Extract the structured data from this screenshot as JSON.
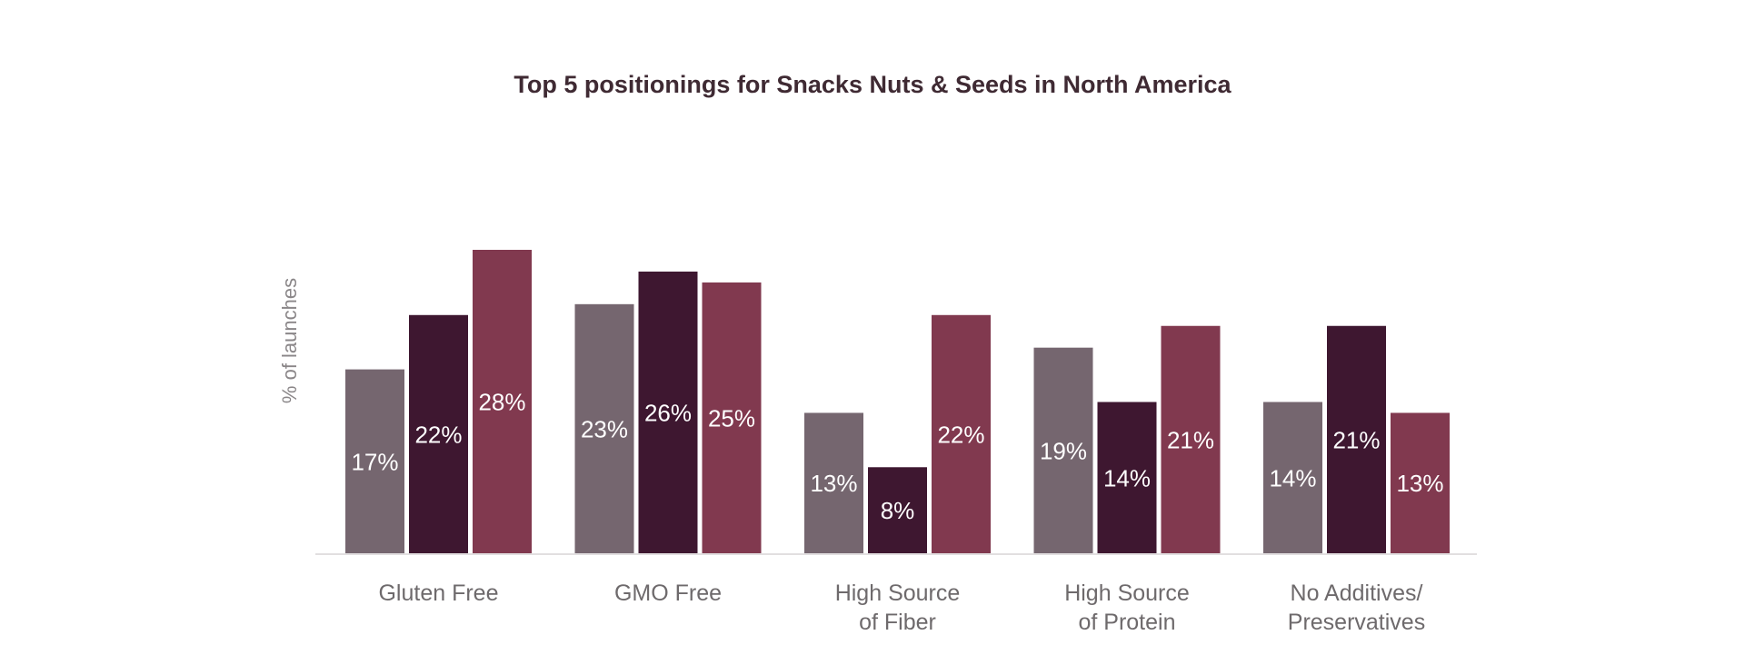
{
  "chart_data": {
    "type": "bar",
    "title": "Top 5 positionings for Snacks Nuts & Seeds in North America",
    "xlabel": "",
    "ylabel": "% of launches",
    "categories": [
      [
        "Gluten Free"
      ],
      [
        "GMO Free"
      ],
      [
        "High Source",
        "of Fiber"
      ],
      [
        "High Source",
        "of Protein"
      ],
      [
        "No Additives/",
        "Preservatives"
      ]
    ],
    "series": [
      {
        "color": "#75666f",
        "values": [
          17,
          23,
          13,
          19,
          14
        ],
        "labels": [
          "17%",
          "23%",
          "13%",
          "19%",
          "14%"
        ]
      },
      {
        "color": "#3e1730",
        "values": [
          22,
          26,
          8,
          14,
          21
        ],
        "labels": [
          "22%",
          "26%",
          "8%",
          "14%",
          "21%"
        ]
      },
      {
        "color": "#81394f",
        "values": [
          28,
          25,
          22,
          21,
          13
        ],
        "labels": [
          "28%",
          "25%",
          "22%",
          "21%",
          "13%"
        ]
      }
    ],
    "ylim": [
      0,
      28
    ],
    "grid": false,
    "legend": "none"
  }
}
